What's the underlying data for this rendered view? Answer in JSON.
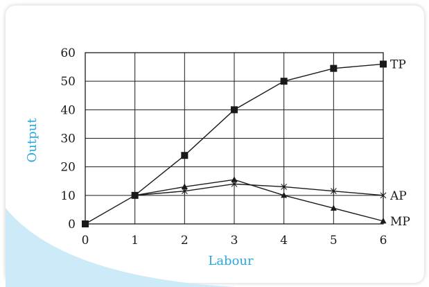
{
  "chart_data": {
    "type": "line",
    "title": "",
    "xlabel": "Labour",
    "ylabel": "Output",
    "x": [
      0,
      1,
      2,
      3,
      4,
      5,
      6
    ],
    "xlim": [
      0,
      6
    ],
    "ylim": [
      0,
      60
    ],
    "xticks": [
      "0",
      "1",
      "2",
      "3",
      "4",
      "5",
      "6"
    ],
    "yticks": [
      "0",
      "10",
      "20",
      "30",
      "40",
      "50",
      "60"
    ],
    "grid": true,
    "legend": "end-of-line labels",
    "series": [
      {
        "name": "TP",
        "marker": "square",
        "x": [
          0,
          1,
          2,
          3,
          4,
          5,
          6
        ],
        "values": [
          0,
          10,
          24,
          40,
          50,
          54.5,
          56
        ]
      },
      {
        "name": "AP",
        "marker": "asterisk",
        "x": [
          1,
          2,
          3,
          4,
          5,
          6
        ],
        "values": [
          10,
          11.5,
          14,
          13,
          11.5,
          10
        ]
      },
      {
        "name": "MP",
        "marker": "triangle",
        "x": [
          1,
          2,
          3,
          4,
          5,
          6
        ],
        "values": [
          10,
          13,
          15.5,
          10,
          5.5,
          1
        ]
      }
    ],
    "colors": {
      "axis_title": "#29a8e0",
      "line": "#1a1a1a",
      "grid": "#1a1a1a",
      "background_curve": "#cdeaf8"
    }
  }
}
